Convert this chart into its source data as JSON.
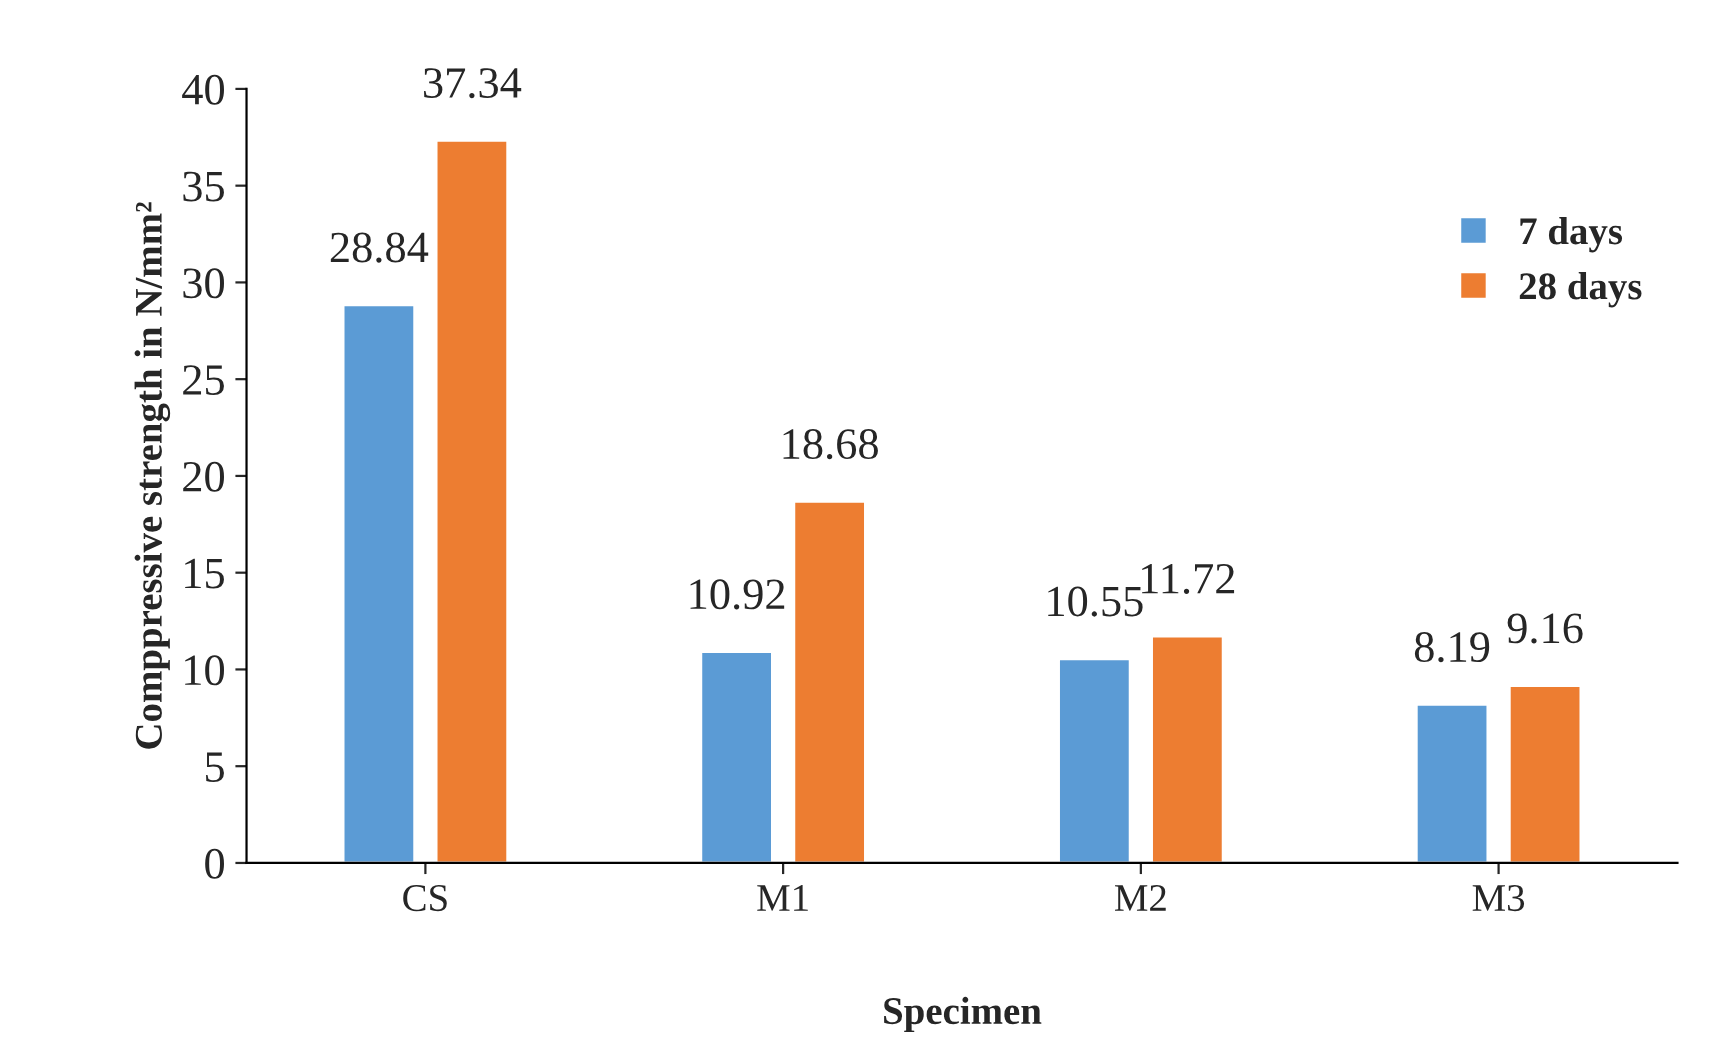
{
  "chart_data": {
    "type": "bar",
    "xlabel": "Specimen",
    "ylabel": "Comppressive strength in N/mm²",
    "categories": [
      "CS",
      "M1",
      "M2",
      "M3"
    ],
    "series": [
      {
        "name": "7 days",
        "color": "#5b9bd5",
        "values": [
          28.84,
          10.92,
          10.55,
          8.19
        ]
      },
      {
        "name": "28 days",
        "color": "#ed7d31",
        "values": [
          37.34,
          18.68,
          11.72,
          9.16
        ]
      }
    ],
    "ylim": [
      0,
      40
    ],
    "yticks": [
      0,
      5,
      10,
      15,
      20,
      25,
      30,
      35,
      40
    ],
    "data_labels": true,
    "grid": false,
    "legend": "top right"
  }
}
